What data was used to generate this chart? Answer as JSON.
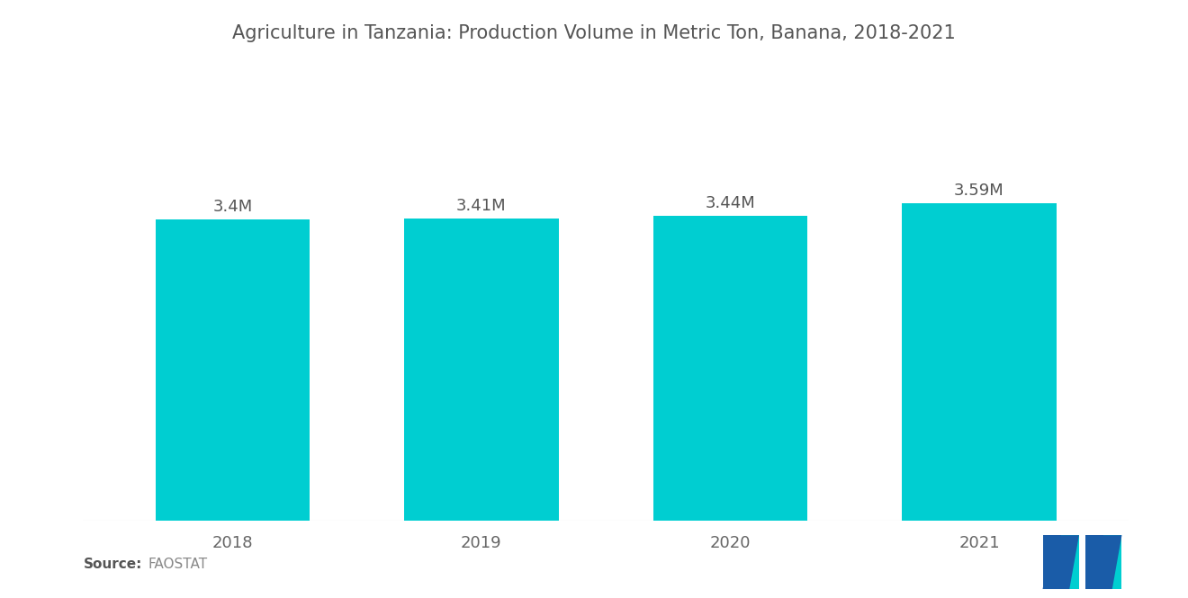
{
  "title": "Agriculture in Tanzania: Production Volume in Metric Ton, Banana, 2018-2021",
  "categories": [
    "2018",
    "2019",
    "2020",
    "2021"
  ],
  "values": [
    3400000,
    3410000,
    3440000,
    3590000
  ],
  "labels": [
    "3.4M",
    "3.41M",
    "3.44M",
    "3.59M"
  ],
  "bar_color": "#00CED1",
  "background_color": "#ffffff",
  "title_fontsize": 15,
  "label_fontsize": 13,
  "tick_fontsize": 13,
  "source_bold": "Source:",
  "source_normal": "  FAOSTAT",
  "ylim": [
    0,
    4600000
  ],
  "bar_width": 0.62,
  "logo_dark_blue": "#1a5ca8",
  "logo_teal": "#00CED1",
  "title_color": "#555555",
  "tick_color": "#666666"
}
